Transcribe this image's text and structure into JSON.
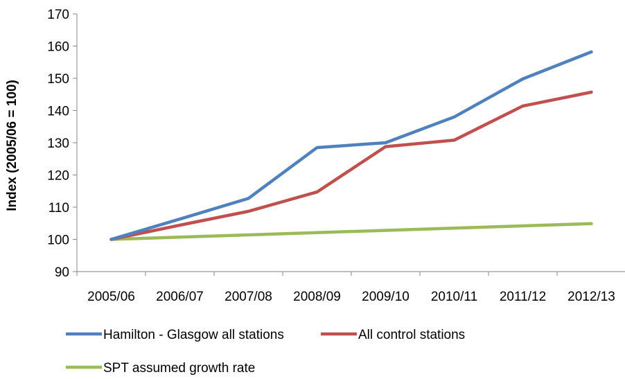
{
  "chart_data": {
    "type": "line",
    "title": "",
    "xlabel": "",
    "ylabel": "Index (2005/06 = 100)",
    "categories": [
      "2005/06",
      "2006/07",
      "2007/08",
      "2008/09",
      "2009/10",
      "2010/11",
      "2011/12",
      "2012/13"
    ],
    "ylim": [
      90,
      170
    ],
    "yticks": [
      90,
      100,
      110,
      120,
      130,
      140,
      150,
      160,
      170
    ],
    "grid": false,
    "legend_position": "bottom",
    "series": [
      {
        "name": "Hamilton - Glasgow all stations",
        "color": "#4f81bd",
        "values": [
          100,
          106.3,
          112.7,
          128.5,
          130,
          138,
          149.8,
          158.2
        ]
      },
      {
        "name": "All control stations",
        "color": "#c0504d",
        "values": [
          100,
          104.4,
          108.7,
          114.7,
          128.8,
          130.8,
          141.4,
          145.7
        ]
      },
      {
        "name": "SPT assumed growth rate",
        "color": "#9bbb59",
        "values": [
          100,
          100.7,
          101.4,
          102.1,
          102.8,
          103.5,
          104.2,
          104.9
        ]
      }
    ]
  }
}
